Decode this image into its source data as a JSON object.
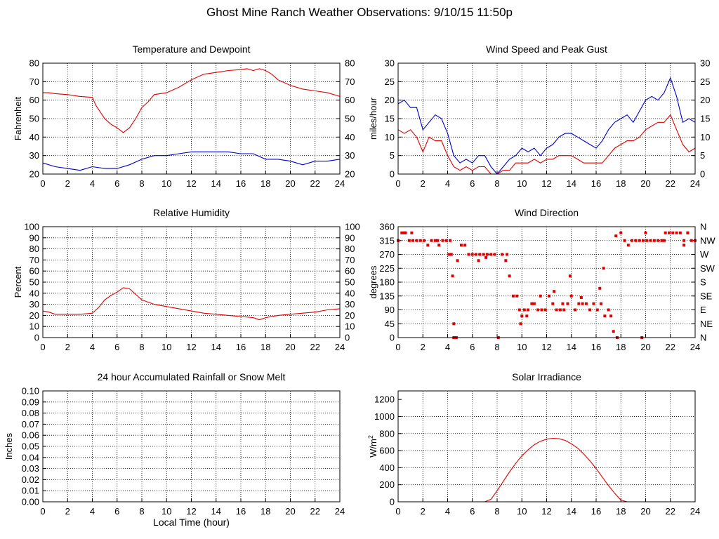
{
  "page": {
    "title": "Ghost Mine Ranch Weather Observations: 9/10/15 11:50p"
  },
  "colors": {
    "red": "#e00000",
    "blue": "#0000cc",
    "axis": "#000000",
    "grid": "#000000"
  },
  "chart_data": [
    {
      "id": "temp",
      "type": "line",
      "title": "Temperature and Dewpoint",
      "xlabel": "",
      "ylabel": "Fahrenheit",
      "xlim": [
        0,
        24
      ],
      "ylim": [
        20,
        80
      ],
      "xticks": [
        0,
        2,
        4,
        6,
        8,
        10,
        12,
        14,
        16,
        18,
        20,
        22,
        24
      ],
      "yticks": [
        20,
        30,
        40,
        50,
        60,
        70,
        80
      ],
      "ytick_labels": [
        "20",
        "30",
        "40",
        "50",
        "60",
        "70",
        "80"
      ],
      "right_ticks": [
        "20",
        "30",
        "40",
        "50",
        "60",
        "70",
        "80"
      ],
      "grid": true,
      "series": [
        {
          "color": "red",
          "x": [
            0,
            0.5,
            1,
            2,
            3,
            4,
            4.3,
            5,
            5.5,
            6,
            6.5,
            7,
            7.5,
            8,
            8.5,
            9,
            10,
            11,
            12,
            13,
            14,
            15,
            16,
            16.5,
            17,
            17.5,
            18,
            18.5,
            19,
            20,
            21,
            22,
            23,
            24
          ],
          "values": [
            64,
            64,
            63.5,
            63,
            62,
            61.5,
            57,
            50,
            47,
            45,
            42.5,
            45,
            50,
            56,
            59,
            63,
            64,
            67,
            71,
            74,
            75,
            76,
            76.5,
            77,
            76,
            77,
            76,
            74,
            71,
            68,
            66,
            65,
            64,
            62
          ]
        },
        {
          "color": "blue",
          "x": [
            0,
            1,
            2,
            3,
            4,
            5,
            6,
            7,
            8,
            9,
            10,
            11,
            12,
            13,
            14,
            15,
            16,
            17,
            18,
            19,
            20,
            21,
            22,
            23,
            24
          ],
          "values": [
            26,
            24,
            23,
            22,
            24,
            23,
            23,
            25,
            28,
            30,
            30,
            31,
            32,
            32,
            32,
            32,
            31,
            31,
            28,
            28,
            27,
            25,
            27,
            27,
            28
          ]
        }
      ]
    },
    {
      "id": "wind",
      "type": "line",
      "title": "Wind Speed and Peak Gust",
      "xlabel": "",
      "ylabel": "miles/hour",
      "xlim": [
        0,
        24
      ],
      "ylim": [
        0,
        30
      ],
      "xticks": [
        0,
        2,
        4,
        6,
        8,
        10,
        12,
        14,
        16,
        18,
        20,
        22,
        24
      ],
      "yticks": [
        0,
        5,
        10,
        15,
        20,
        25,
        30
      ],
      "ytick_labels": [
        "0",
        "5",
        "10",
        "15",
        "20",
        "25",
        "30"
      ],
      "right_ticks": [
        "0",
        "5",
        "10",
        "15",
        "20",
        "25",
        "30"
      ],
      "grid": true,
      "series": [
        {
          "color": "blue",
          "x": [
            0,
            0.5,
            1,
            1.5,
            2,
            2.5,
            3,
            3.5,
            4,
            4.5,
            5,
            5.5,
            6,
            6.5,
            7,
            7.5,
            8,
            8.5,
            9,
            9.5,
            10,
            10.5,
            11,
            11.5,
            12,
            12.5,
            13,
            13.5,
            14,
            14.5,
            15,
            15.5,
            16,
            16.5,
            17,
            17.5,
            18,
            18.5,
            19,
            19.5,
            20,
            20.5,
            21,
            21.5,
            22,
            22.5,
            23,
            23.5,
            24
          ],
          "values": [
            19,
            20,
            18,
            18,
            12,
            14,
            16,
            15,
            11,
            5,
            3,
            4,
            3,
            5,
            5,
            2,
            0,
            2,
            4,
            5,
            7,
            6,
            7,
            5,
            7,
            8,
            10,
            11,
            11,
            10,
            9,
            8,
            7,
            9,
            12,
            14,
            15,
            16,
            14,
            17,
            20,
            21,
            20,
            22,
            26,
            21,
            14,
            15,
            14
          ]
        },
        {
          "color": "red",
          "x": [
            0,
            0.5,
            1,
            1.5,
            2,
            2.5,
            3,
            3.5,
            4,
            4.5,
            5,
            5.5,
            6,
            6.5,
            7,
            7.5,
            8,
            8.5,
            9,
            9.5,
            10,
            10.5,
            11,
            11.5,
            12,
            12.5,
            13,
            13.5,
            14,
            14.5,
            15,
            15.5,
            16,
            16.5,
            17,
            17.5,
            18,
            18.5,
            19,
            19.5,
            20,
            20.5,
            21,
            21.5,
            22,
            22.5,
            23,
            23.5,
            24
          ],
          "values": [
            12,
            11,
            12,
            10,
            6,
            10,
            9,
            9,
            5,
            2,
            1,
            2,
            1,
            2,
            2,
            0,
            0,
            1,
            1,
            3,
            3,
            3,
            4,
            3,
            4,
            4,
            5,
            5,
            5,
            4,
            3,
            3,
            3,
            3,
            5,
            7,
            8,
            9,
            9,
            10,
            12,
            13,
            14,
            14,
            16,
            12,
            8,
            6,
            7
          ]
        }
      ]
    },
    {
      "id": "rh",
      "type": "line",
      "title": "Relative Humidity",
      "xlabel": "",
      "ylabel": "Percent",
      "xlim": [
        0,
        24
      ],
      "ylim": [
        0,
        100
      ],
      "xticks": [
        0,
        2,
        4,
        6,
        8,
        10,
        12,
        14,
        16,
        18,
        20,
        22,
        24
      ],
      "yticks": [
        0,
        10,
        20,
        30,
        40,
        50,
        60,
        70,
        80,
        90,
        100
      ],
      "ytick_labels": [
        "0",
        "10",
        "20",
        "30",
        "40",
        "50",
        "60",
        "70",
        "80",
        "90",
        "100"
      ],
      "right_ticks": [
        "0",
        "10",
        "20",
        "30",
        "40",
        "50",
        "60",
        "70",
        "80",
        "90",
        "100"
      ],
      "grid": true,
      "series": [
        {
          "color": "red",
          "x": [
            0,
            0.5,
            1,
            2,
            3,
            4,
            4.5,
            5,
            5.5,
            6,
            6.5,
            7,
            7.5,
            8,
            9,
            10,
            11,
            12,
            13,
            14,
            15,
            16,
            17,
            17.5,
            18,
            19,
            20,
            21,
            22,
            23,
            24
          ],
          "values": [
            24,
            23,
            21,
            21,
            21,
            22,
            27,
            34,
            38,
            41,
            45,
            44,
            39,
            34,
            30,
            28,
            26,
            24,
            22,
            21,
            20,
            19,
            18,
            16,
            18,
            20,
            21,
            22,
            23,
            25,
            26
          ]
        }
      ]
    },
    {
      "id": "wdir",
      "type": "scatter",
      "title": "Wind Direction",
      "xlabel": "",
      "ylabel": "degrees",
      "xlim": [
        0,
        24
      ],
      "ylim": [
        0,
        360
      ],
      "xticks": [
        0,
        2,
        4,
        6,
        8,
        10,
        12,
        14,
        16,
        18,
        20,
        22,
        24
      ],
      "yticks": [
        0,
        45,
        90,
        135,
        180,
        225,
        270,
        315,
        360
      ],
      "ytick_labels": [
        "0",
        "45",
        "90",
        "135",
        "180",
        "225",
        "270",
        "315",
        "360"
      ],
      "right_ticks": [
        "N",
        "NE",
        "E",
        "SE",
        "S",
        "SW",
        "W",
        "NW",
        "N"
      ],
      "grid": true,
      "series": [
        {
          "color": "red",
          "x": [
            0,
            0.3,
            0.6,
            0.9,
            1.2,
            1.5,
            1.8,
            2.1,
            2.4,
            2.7,
            3,
            3.3,
            3.6,
            3.9,
            4.2,
            4.3,
            4.4,
            4.5,
            4.8,
            5.1,
            5.4,
            5.7,
            6,
            6.3,
            6.6,
            6.9,
            7.2,
            7.5,
            7.8,
            8.1,
            8.4,
            8.7,
            9,
            9.3,
            9.6,
            9.8,
            10,
            10.2,
            10.5,
            10.8,
            11,
            11.3,
            11.6,
            11.9,
            12.2,
            12.5,
            12.8,
            13.1,
            13.4,
            13.7,
            14,
            14.3,
            14.6,
            14.9,
            15.2,
            15.5,
            15.8,
            16.1,
            16.4,
            16.7,
            17,
            17.2,
            17.4,
            17.7,
            18,
            18.3,
            18.6,
            18.9,
            19.2,
            19.5,
            19.8,
            20.1,
            20.4,
            20.7,
            21,
            21.3,
            21.6,
            21.9,
            22.2,
            22.5,
            22.8,
            23.1,
            23.4,
            23.7,
            24,
            0.5,
            1.1,
            3.2,
            4.1,
            4.5,
            4.7,
            6.5,
            7.1,
            8.8,
            9.9,
            10.4,
            11.5,
            12.6,
            13.3,
            13.9,
            14.8,
            16.3,
            16.6,
            17.6,
            19.7,
            20,
            21.5,
            23.1,
            23.4
          ],
          "values": [
            315,
            340,
            340,
            315,
            315,
            315,
            315,
            315,
            300,
            315,
            315,
            300,
            315,
            315,
            315,
            270,
            200,
            0,
            250,
            300,
            300,
            270,
            270,
            270,
            270,
            270,
            270,
            270,
            270,
            0,
            270,
            250,
            200,
            135,
            135,
            90,
            70,
            90,
            90,
            110,
            110,
            90,
            90,
            90,
            135,
            110,
            90,
            90,
            90,
            110,
            135,
            90,
            110,
            110,
            110,
            90,
            110,
            90,
            110,
            70,
            90,
            70,
            20,
            0,
            340,
            315,
            300,
            315,
            315,
            315,
            315,
            315,
            315,
            315,
            315,
            315,
            340,
            340,
            340,
            340,
            340,
            315,
            340,
            315,
            315,
            340,
            340,
            315,
            270,
            45,
            0,
            250,
            260,
            270,
            45,
            70,
            135,
            150,
            110,
            200,
            130,
            160,
            225,
            330,
            0,
            340,
            315,
            300,
            340
          ]
        }
      ]
    },
    {
      "id": "rain",
      "type": "line",
      "title": "24 hour Accumulated Rainfall or Snow Melt",
      "xlabel": "Local Time (hour)",
      "ylabel": "Inches",
      "xlim": [
        0,
        24
      ],
      "ylim": [
        0,
        0.1
      ],
      "xticks": [
        0,
        2,
        4,
        6,
        8,
        10,
        12,
        14,
        16,
        18,
        20,
        22,
        24
      ],
      "yticks": [
        0,
        0.01,
        0.02,
        0.03,
        0.04,
        0.05,
        0.06,
        0.07,
        0.08,
        0.09,
        0.1
      ],
      "ytick_labels": [
        "0.00",
        "0.01",
        "0.02",
        "0.03",
        "0.04",
        "0.05",
        "0.06",
        "0.07",
        "0.08",
        "0.09",
        "0.10"
      ],
      "right_ticks": [],
      "grid": true,
      "series": [
        {
          "color": "red",
          "x": [
            0,
            24
          ],
          "values": [
            0,
            0
          ]
        }
      ]
    },
    {
      "id": "solar",
      "type": "line",
      "title": "Solar Irradiance",
      "xlabel": "",
      "ylabel": "W/m",
      "ylabel_sup": "2",
      "xlim": [
        0,
        24
      ],
      "ylim": [
        0,
        1300
      ],
      "xticks": [
        0,
        2,
        4,
        6,
        8,
        10,
        12,
        14,
        16,
        18,
        20,
        22,
        24
      ],
      "yticks": [
        0,
        200,
        400,
        600,
        800,
        1000,
        1200
      ],
      "ytick_labels": [
        "0",
        "200",
        "400",
        "600",
        "800",
        "1000",
        "1200"
      ],
      "right_ticks": [],
      "grid": true,
      "series": [
        {
          "color": "red",
          "x": [
            0,
            7,
            7.5,
            8,
            8.5,
            9,
            9.5,
            10,
            10.5,
            11,
            11.5,
            12,
            12.5,
            13,
            13.5,
            14,
            14.5,
            15,
            15.5,
            16,
            16.5,
            17,
            17.5,
            18,
            18.5,
            19,
            19.5,
            24
          ],
          "values": [
            0,
            0,
            30,
            130,
            240,
            350,
            450,
            540,
            610,
            670,
            710,
            735,
            745,
            740,
            720,
            680,
            630,
            560,
            480,
            390,
            290,
            190,
            100,
            20,
            0,
            0,
            0,
            0
          ]
        }
      ]
    }
  ]
}
